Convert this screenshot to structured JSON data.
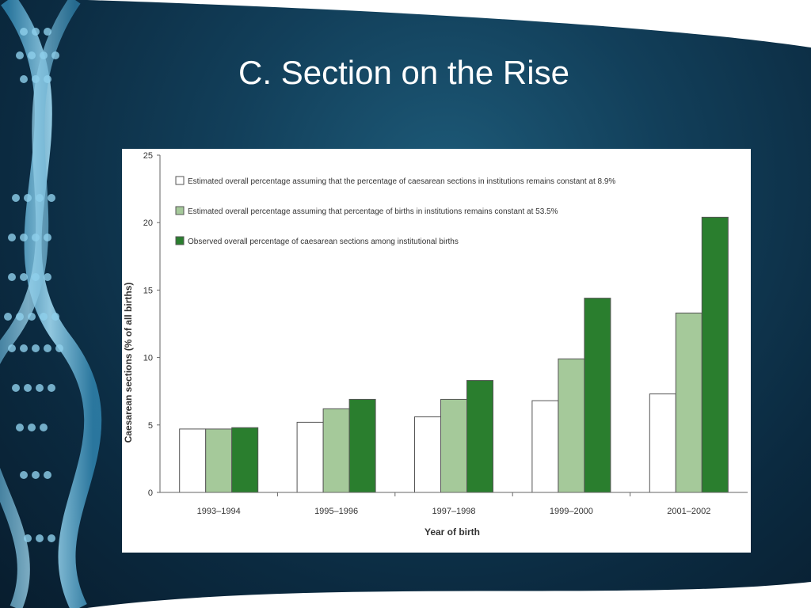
{
  "slide": {
    "title": "C. Section on the Rise"
  },
  "colors": {
    "series_observed": "#2a7e2e",
    "series_births_constant": "#a5c99a",
    "series_caesarean_constant": "#ffffff",
    "bar_stroke": "#555555"
  },
  "chart_data": {
    "type": "bar",
    "title": "",
    "xlabel": "Year of birth",
    "ylabel": "Caesarean sections (% of all births)",
    "ylim": [
      0,
      25
    ],
    "yticks": [
      0,
      5,
      10,
      15,
      20,
      25
    ],
    "categories": [
      "1993–1994",
      "1995–1996",
      "1997–1998",
      "1999–2000",
      "2001–2002"
    ],
    "legend_position": "top-left",
    "grid": false,
    "series": [
      {
        "name": "Estimated overall percentage assuming that the percentage of caesarean sections in institutions remains constant at 8.9%",
        "color": "#ffffff",
        "values": [
          4.7,
          5.2,
          5.6,
          6.8,
          7.3
        ]
      },
      {
        "name": "Estimated overall percentage assuming that percentage of births in institutions remains constant at 53.5%",
        "color": "#a5c99a",
        "values": [
          4.7,
          6.2,
          6.9,
          9.9,
          13.3
        ]
      },
      {
        "name": "Observed overall percentage of caesarean sections among institutional births",
        "color": "#2a7e2e",
        "values": [
          4.8,
          6.9,
          8.3,
          14.4,
          20.4
        ]
      }
    ]
  }
}
